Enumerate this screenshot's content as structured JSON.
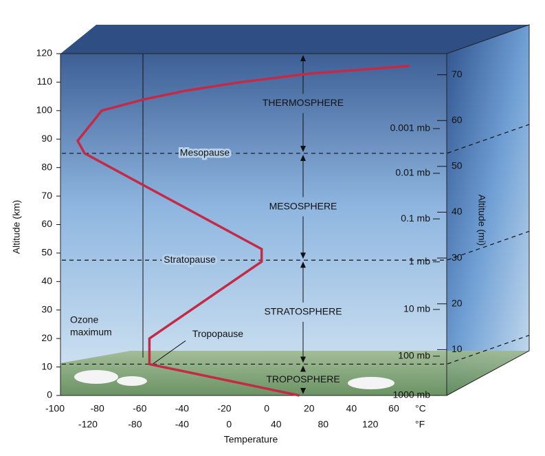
{
  "chart_data": {
    "type": "line",
    "x_label": "Temperature",
    "y_label": "Altitude (km)",
    "y2_label": "Altitude (mi)",
    "x_unit": "°C",
    "x2_unit": "°F",
    "xlim": [
      -100,
      85
    ],
    "xticks": [
      -100,
      -80,
      -60,
      -40,
      -20,
      0,
      20,
      40,
      60
    ],
    "x2lim": [
      -148,
      185
    ],
    "x2ticks": [
      -120,
      -80,
      -40,
      0,
      40,
      80,
      120
    ],
    "ylim": [
      0,
      120
    ],
    "yticks": [
      0,
      10,
      20,
      30,
      40,
      50,
      60,
      70,
      80,
      90,
      100,
      110,
      120
    ],
    "y2lim": [
      0,
      74.6
    ],
    "y2ticks": [
      10,
      20,
      30,
      40,
      50,
      60,
      70
    ],
    "pressure_ticks": [
      {
        "value": 93.7,
        "label": "0.001 mb"
      },
      {
        "value": 78,
        "label": "0.01 mb"
      },
      {
        "value": 62,
        "label": "0.1 mb"
      },
      {
        "value": 46.9,
        "label": "1 mb"
      },
      {
        "value": 30.2,
        "label": "10 mb"
      },
      {
        "value": 13.8,
        "label": "100 mb"
      },
      {
        "value": 0,
        "label": "1000 mb"
      }
    ],
    "boundaries": [
      {
        "label": "Mesopause",
        "altitude": 85
      },
      {
        "label": "Stratopause",
        "altitude": 47.5
      },
      {
        "label": "Tropopause",
        "altitude": 11
      }
    ],
    "layers": [
      "THERMOSPHERE",
      "MESOSPHERE",
      "STRATOSPHERE",
      "TROPOSPHERE"
    ],
    "annotation": [
      "Ozone",
      "maximum"
    ],
    "series": [
      {
        "color": "#c42a45",
        "x": [
          15.4,
          -55.4,
          -55.4,
          -2.4,
          -2.4,
          -86,
          -89.3,
          -77.9,
          -57.7,
          -38.2,
          -12.2,
          20.3,
          67.5
        ],
        "values": [
          0,
          11,
          20,
          47,
          51.4,
          85,
          89.4,
          100,
          104,
          107,
          110,
          113,
          115.7
        ]
      }
    ]
  }
}
